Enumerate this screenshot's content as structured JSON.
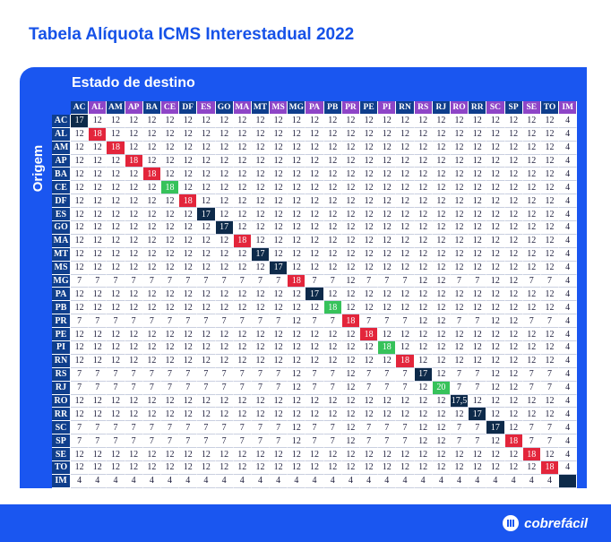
{
  "title": "Tabela Alíquota ICMS Interestadual 2022",
  "destination_label": "Estado de destino",
  "origin_label": "Origem",
  "brand": "cobrefácil",
  "colors": {
    "brand_blue": "#1a56f0",
    "header_navy": "#0f3e8c",
    "header_purple": "#8e45c7",
    "diag_dark": "#0d2a4a",
    "diag_red": "#e3253b",
    "diag_green": "#36c25a"
  },
  "states": [
    "AC",
    "AL",
    "AM",
    "AP",
    "BA",
    "CE",
    "DF",
    "ES",
    "GO",
    "MA",
    "MT",
    "MS",
    "MG",
    "PA",
    "PB",
    "PR",
    "PE",
    "PI",
    "RN",
    "RS",
    "RJ",
    "RO",
    "RR",
    "SC",
    "SP",
    "SE",
    "TO",
    "IM"
  ],
  "rows": [
    {
      "origin": "AC",
      "values": [
        "17",
        "12",
        "12",
        "12",
        "12",
        "12",
        "12",
        "12",
        "12",
        "12",
        "12",
        "12",
        "12",
        "12",
        "12",
        "12",
        "12",
        "12",
        "12",
        "12",
        "12",
        "12",
        "12",
        "12",
        "12",
        "12",
        "12",
        "4"
      ],
      "diag_style": "dark"
    },
    {
      "origin": "AL",
      "values": [
        "12",
        "18",
        "12",
        "12",
        "12",
        "12",
        "12",
        "12",
        "12",
        "12",
        "12",
        "12",
        "12",
        "12",
        "12",
        "12",
        "12",
        "12",
        "12",
        "12",
        "12",
        "12",
        "12",
        "12",
        "12",
        "12",
        "12",
        "4"
      ],
      "diag_style": "red"
    },
    {
      "origin": "AM",
      "values": [
        "12",
        "12",
        "18",
        "12",
        "12",
        "12",
        "12",
        "12",
        "12",
        "12",
        "12",
        "12",
        "12",
        "12",
        "12",
        "12",
        "12",
        "12",
        "12",
        "12",
        "12",
        "12",
        "12",
        "12",
        "12",
        "12",
        "12",
        "4"
      ],
      "diag_style": "red"
    },
    {
      "origin": "AP",
      "values": [
        "12",
        "12",
        "12",
        "18",
        "12",
        "12",
        "12",
        "12",
        "12",
        "12",
        "12",
        "12",
        "12",
        "12",
        "12",
        "12",
        "12",
        "12",
        "12",
        "12",
        "12",
        "12",
        "12",
        "12",
        "12",
        "12",
        "12",
        "4"
      ],
      "diag_style": "red"
    },
    {
      "origin": "BA",
      "values": [
        "12",
        "12",
        "12",
        "12",
        "18",
        "12",
        "12",
        "12",
        "12",
        "12",
        "12",
        "12",
        "12",
        "12",
        "12",
        "12",
        "12",
        "12",
        "12",
        "12",
        "12",
        "12",
        "12",
        "12",
        "12",
        "12",
        "12",
        "4"
      ],
      "diag_style": "red"
    },
    {
      "origin": "CE",
      "values": [
        "12",
        "12",
        "12",
        "12",
        "12",
        "18",
        "12",
        "12",
        "12",
        "12",
        "12",
        "12",
        "12",
        "12",
        "12",
        "12",
        "12",
        "12",
        "12",
        "12",
        "12",
        "12",
        "12",
        "12",
        "12",
        "12",
        "12",
        "4"
      ],
      "diag_style": "green"
    },
    {
      "origin": "DF",
      "values": [
        "12",
        "12",
        "12",
        "12",
        "12",
        "12",
        "18",
        "12",
        "12",
        "12",
        "12",
        "12",
        "12",
        "12",
        "12",
        "12",
        "12",
        "12",
        "12",
        "12",
        "12",
        "12",
        "12",
        "12",
        "12",
        "12",
        "12",
        "4"
      ],
      "diag_style": "red"
    },
    {
      "origin": "ES",
      "values": [
        "12",
        "12",
        "12",
        "12",
        "12",
        "12",
        "12",
        "17",
        "12",
        "12",
        "12",
        "12",
        "12",
        "12",
        "12",
        "12",
        "12",
        "12",
        "12",
        "12",
        "12",
        "12",
        "12",
        "12",
        "12",
        "12",
        "12",
        "4"
      ],
      "diag_style": "dark"
    },
    {
      "origin": "GO",
      "values": [
        "12",
        "12",
        "12",
        "12",
        "12",
        "12",
        "12",
        "12",
        "17",
        "12",
        "12",
        "12",
        "12",
        "12",
        "12",
        "12",
        "12",
        "12",
        "12",
        "12",
        "12",
        "12",
        "12",
        "12",
        "12",
        "12",
        "12",
        "4"
      ],
      "diag_style": "dark"
    },
    {
      "origin": "MA",
      "values": [
        "12",
        "12",
        "12",
        "12",
        "12",
        "12",
        "12",
        "12",
        "12",
        "18",
        "12",
        "12",
        "12",
        "12",
        "12",
        "12",
        "12",
        "12",
        "12",
        "12",
        "12",
        "12",
        "12",
        "12",
        "12",
        "12",
        "12",
        "4"
      ],
      "diag_style": "red"
    },
    {
      "origin": "MT",
      "values": [
        "12",
        "12",
        "12",
        "12",
        "12",
        "12",
        "12",
        "12",
        "12",
        "12",
        "17",
        "12",
        "12",
        "12",
        "12",
        "12",
        "12",
        "12",
        "12",
        "12",
        "12",
        "12",
        "12",
        "12",
        "12",
        "12",
        "12",
        "4"
      ],
      "diag_style": "dark"
    },
    {
      "origin": "MS",
      "values": [
        "12",
        "12",
        "12",
        "12",
        "12",
        "12",
        "12",
        "12",
        "12",
        "12",
        "12",
        "17",
        "12",
        "12",
        "12",
        "12",
        "12",
        "12",
        "12",
        "12",
        "12",
        "12",
        "12",
        "12",
        "12",
        "12",
        "12",
        "4"
      ],
      "diag_style": "dark"
    },
    {
      "origin": "MG",
      "values": [
        "7",
        "7",
        "7",
        "7",
        "7",
        "7",
        "7",
        "7",
        "7",
        "7",
        "7",
        "7",
        "18",
        "7",
        "7",
        "12",
        "7",
        "7",
        "7",
        "12",
        "12",
        "7",
        "7",
        "12",
        "12",
        "7",
        "7",
        "4"
      ],
      "diag_style": "red"
    },
    {
      "origin": "PA",
      "values": [
        "12",
        "12",
        "12",
        "12",
        "12",
        "12",
        "12",
        "12",
        "12",
        "12",
        "12",
        "12",
        "12",
        "17",
        "12",
        "12",
        "12",
        "12",
        "12",
        "12",
        "12",
        "12",
        "12",
        "12",
        "12",
        "12",
        "12",
        "4"
      ],
      "diag_style": "dark"
    },
    {
      "origin": "PB",
      "values": [
        "12",
        "12",
        "12",
        "12",
        "12",
        "12",
        "12",
        "12",
        "12",
        "12",
        "12",
        "12",
        "12",
        "12",
        "18",
        "12",
        "12",
        "12",
        "12",
        "12",
        "12",
        "12",
        "12",
        "12",
        "12",
        "12",
        "12",
        "4"
      ],
      "diag_style": "green"
    },
    {
      "origin": "PR",
      "values": [
        "7",
        "7",
        "7",
        "7",
        "7",
        "7",
        "7",
        "7",
        "7",
        "7",
        "7",
        "7",
        "12",
        "7",
        "7",
        "18",
        "7",
        "7",
        "7",
        "12",
        "12",
        "7",
        "7",
        "12",
        "12",
        "7",
        "7",
        "4"
      ],
      "diag_style": "red"
    },
    {
      "origin": "PE",
      "values": [
        "12",
        "12",
        "12",
        "12",
        "12",
        "12",
        "12",
        "12",
        "12",
        "12",
        "12",
        "12",
        "12",
        "12",
        "12",
        "12",
        "18",
        "12",
        "12",
        "12",
        "12",
        "12",
        "12",
        "12",
        "12",
        "12",
        "12",
        "4"
      ],
      "diag_style": "red"
    },
    {
      "origin": "PI",
      "values": [
        "12",
        "12",
        "12",
        "12",
        "12",
        "12",
        "12",
        "12",
        "12",
        "12",
        "12",
        "12",
        "12",
        "12",
        "12",
        "12",
        "12",
        "18",
        "12",
        "12",
        "12",
        "12",
        "12",
        "12",
        "12",
        "12",
        "12",
        "4"
      ],
      "diag_style": "green"
    },
    {
      "origin": "RN",
      "values": [
        "12",
        "12",
        "12",
        "12",
        "12",
        "12",
        "12",
        "12",
        "12",
        "12",
        "12",
        "12",
        "12",
        "12",
        "12",
        "12",
        "12",
        "12",
        "18",
        "12",
        "12",
        "12",
        "12",
        "12",
        "12",
        "12",
        "12",
        "4"
      ],
      "diag_style": "red"
    },
    {
      "origin": "RS",
      "values": [
        "7",
        "7",
        "7",
        "7",
        "7",
        "7",
        "7",
        "7",
        "7",
        "7",
        "7",
        "7",
        "12",
        "7",
        "7",
        "12",
        "7",
        "7",
        "7",
        "17",
        "12",
        "7",
        "7",
        "12",
        "12",
        "7",
        "7",
        "4"
      ],
      "diag_style": "dark"
    },
    {
      "origin": "RJ",
      "values": [
        "7",
        "7",
        "7",
        "7",
        "7",
        "7",
        "7",
        "7",
        "7",
        "7",
        "7",
        "7",
        "12",
        "7",
        "7",
        "12",
        "7",
        "7",
        "7",
        "12",
        "20",
        "7",
        "7",
        "12",
        "12",
        "7",
        "7",
        "4"
      ],
      "diag_style": "green"
    },
    {
      "origin": "RO",
      "values": [
        "12",
        "12",
        "12",
        "12",
        "12",
        "12",
        "12",
        "12",
        "12",
        "12",
        "12",
        "12",
        "12",
        "12",
        "12",
        "12",
        "12",
        "12",
        "12",
        "12",
        "12",
        "17,5",
        "12",
        "12",
        "12",
        "12",
        "12",
        "4"
      ],
      "diag_style": "dark"
    },
    {
      "origin": "RR",
      "values": [
        "12",
        "12",
        "12",
        "12",
        "12",
        "12",
        "12",
        "12",
        "12",
        "12",
        "12",
        "12",
        "12",
        "12",
        "12",
        "12",
        "12",
        "12",
        "12",
        "12",
        "12",
        "12",
        "17",
        "12",
        "12",
        "12",
        "12",
        "4"
      ],
      "diag_style": "dark"
    },
    {
      "origin": "SC",
      "values": [
        "7",
        "7",
        "7",
        "7",
        "7",
        "7",
        "7",
        "7",
        "7",
        "7",
        "7",
        "7",
        "12",
        "7",
        "7",
        "12",
        "7",
        "7",
        "7",
        "12",
        "12",
        "7",
        "7",
        "17",
        "12",
        "7",
        "7",
        "4"
      ],
      "diag_style": "dark"
    },
    {
      "origin": "SP",
      "values": [
        "7",
        "7",
        "7",
        "7",
        "7",
        "7",
        "7",
        "7",
        "7",
        "7",
        "7",
        "7",
        "12",
        "7",
        "7",
        "12",
        "7",
        "7",
        "7",
        "12",
        "12",
        "7",
        "7",
        "12",
        "18",
        "7",
        "7",
        "4"
      ],
      "diag_style": "red"
    },
    {
      "origin": "SE",
      "values": [
        "12",
        "12",
        "12",
        "12",
        "12",
        "12",
        "12",
        "12",
        "12",
        "12",
        "12",
        "12",
        "12",
        "12",
        "12",
        "12",
        "12",
        "12",
        "12",
        "12",
        "12",
        "12",
        "12",
        "12",
        "12",
        "18",
        "12",
        "4"
      ],
      "diag_style": "red"
    },
    {
      "origin": "TO",
      "values": [
        "12",
        "12",
        "12",
        "12",
        "12",
        "12",
        "12",
        "12",
        "12",
        "12",
        "12",
        "12",
        "12",
        "12",
        "12",
        "12",
        "12",
        "12",
        "12",
        "12",
        "12",
        "12",
        "12",
        "12",
        "12",
        "12",
        "18",
        "4"
      ],
      "diag_style": "red"
    },
    {
      "origin": "IM",
      "values": [
        "4",
        "4",
        "4",
        "4",
        "4",
        "4",
        "4",
        "4",
        "4",
        "4",
        "4",
        "4",
        "4",
        "4",
        "4",
        "4",
        "4",
        "4",
        "4",
        "4",
        "4",
        "4",
        "4",
        "4",
        "4",
        "4",
        "4",
        ""
      ],
      "diag_style": "blank"
    }
  ]
}
